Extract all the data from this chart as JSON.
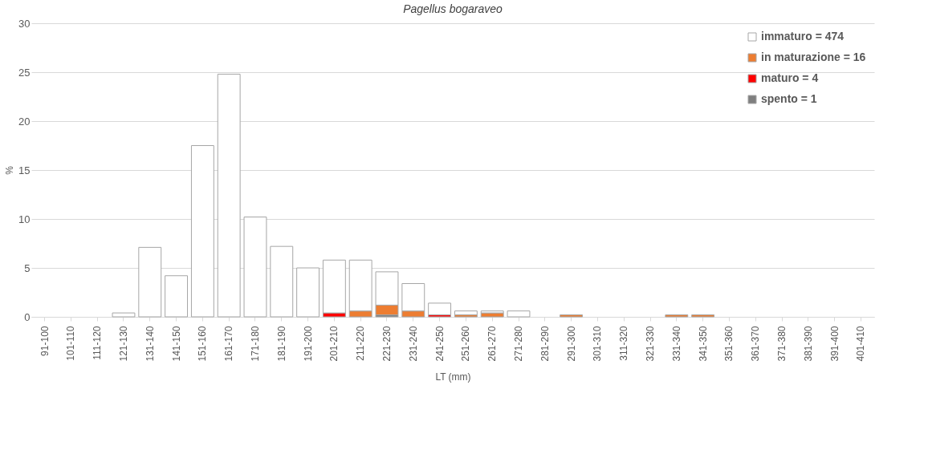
{
  "chart_data": {
    "type": "bar",
    "stacked": true,
    "title": "Pagellus bogaraveo",
    "xlabel": "LT (mm)",
    "ylabel": "%",
    "categories": [
      "91-100",
      "101-110",
      "111-120",
      "121-130",
      "131-140",
      "141-150",
      "151-160",
      "161-170",
      "171-180",
      "181-190",
      "191-200",
      "201-210",
      "211-220",
      "221-230",
      "231-240",
      "241-250",
      "251-260",
      "261-270",
      "271-280",
      "281-290",
      "291-300",
      "301-310",
      "311-320",
      "321-330",
      "331-340",
      "341-350",
      "351-360",
      "361-370",
      "371-380",
      "381-390",
      "391-400",
      "401-410"
    ],
    "series": [
      {
        "name": "spento = 1",
        "color": "#7f7f7f",
        "values": [
          null,
          null,
          null,
          null,
          null,
          null,
          null,
          null,
          null,
          null,
          null,
          null,
          null,
          0.2,
          null,
          null,
          null,
          null,
          null,
          null,
          null,
          null,
          null,
          null,
          null,
          null,
          null,
          null,
          null,
          null,
          null,
          null
        ]
      },
      {
        "name": "maturo = 4",
        "color": "#ff0000",
        "values": [
          null,
          null,
          null,
          null,
          null,
          null,
          null,
          null,
          null,
          null,
          null,
          0.4,
          null,
          null,
          null,
          0.2,
          null,
          null,
          null,
          null,
          null,
          null,
          null,
          null,
          null,
          null,
          null,
          null,
          null,
          null,
          null,
          null
        ]
      },
      {
        "name": "in maturazione = 16",
        "color": "#ed7d31",
        "values": [
          null,
          null,
          null,
          null,
          null,
          null,
          null,
          null,
          null,
          null,
          null,
          null,
          0.6,
          1.0,
          0.6,
          null,
          0.2,
          0.4,
          null,
          null,
          0.2,
          null,
          null,
          null,
          0.2,
          0.2,
          null,
          null,
          null,
          null,
          null,
          null
        ]
      },
      {
        "name": "immaturo = 474",
        "color": "#ffffff",
        "values": [
          null,
          null,
          null,
          0.4,
          7.1,
          4.2,
          17.5,
          24.8,
          10.2,
          7.2,
          5.0,
          5.4,
          5.2,
          3.4,
          2.8,
          1.2,
          0.4,
          0.2,
          0.6,
          null,
          null,
          null,
          null,
          null,
          null,
          null,
          null,
          null,
          null,
          null,
          null,
          null
        ]
      }
    ],
    "ylim": [
      0,
      30
    ],
    "yticks": [
      0,
      5,
      10,
      15,
      20,
      25,
      30
    ],
    "grid": "y",
    "legend": "top right"
  }
}
